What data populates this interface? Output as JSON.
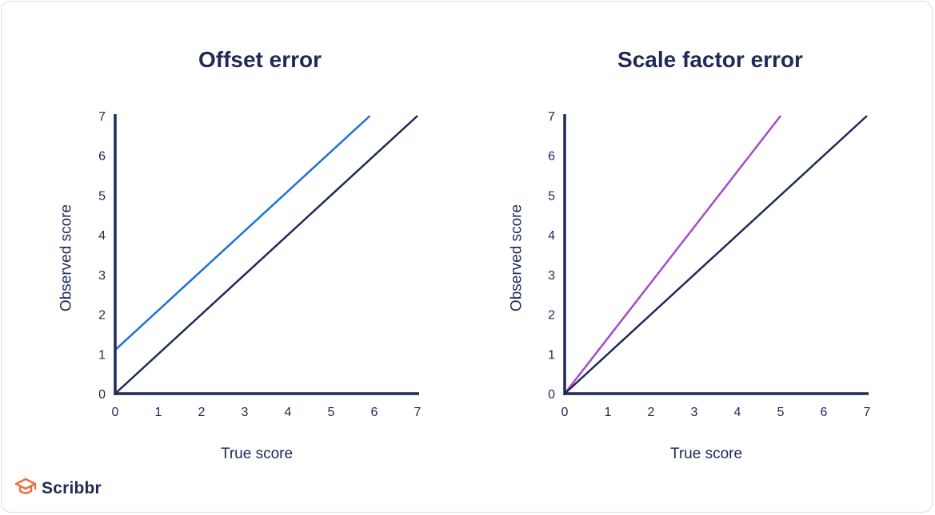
{
  "brand": {
    "name": "Scribbr",
    "logo_icon": "graduation-cap-icon",
    "logo_color": "#ef6c40"
  },
  "colors": {
    "axis": "#1f2a55",
    "text": "#1f2a55",
    "offset_series": "#1a73d6",
    "scale_series": "#a64bc7",
    "baseline_series": "#1f2a55"
  },
  "chart_data": [
    {
      "type": "line",
      "title": "Offset error",
      "xlabel": "True score",
      "ylabel": "Observed score",
      "xlim": [
        0,
        7
      ],
      "ylim": [
        0,
        7
      ],
      "x_ticks": [
        0,
        1,
        2,
        3,
        4,
        5,
        6,
        7
      ],
      "y_ticks": [
        0,
        1,
        2,
        3,
        4,
        5,
        6,
        7
      ],
      "grid": false,
      "series": [
        {
          "color": "#1a73d6",
          "x": [
            0,
            5.9
          ],
          "y": [
            1.1,
            7
          ]
        },
        {
          "color": "#1f2a55",
          "x": [
            0,
            7
          ],
          "y": [
            0,
            7
          ]
        }
      ]
    },
    {
      "type": "line",
      "title": "Scale factor error",
      "xlabel": "True score",
      "ylabel": "Observed score",
      "xlim": [
        0,
        7
      ],
      "ylim": [
        0,
        7
      ],
      "x_ticks": [
        0,
        1,
        2,
        3,
        4,
        5,
        6,
        7
      ],
      "y_ticks": [
        0,
        1,
        2,
        3,
        4,
        5,
        6,
        7
      ],
      "grid": false,
      "series": [
        {
          "color": "#a64bc7",
          "x": [
            0,
            5
          ],
          "y": [
            0,
            7
          ]
        },
        {
          "color": "#1f2a55",
          "x": [
            0,
            7
          ],
          "y": [
            0,
            7
          ]
        }
      ]
    }
  ]
}
